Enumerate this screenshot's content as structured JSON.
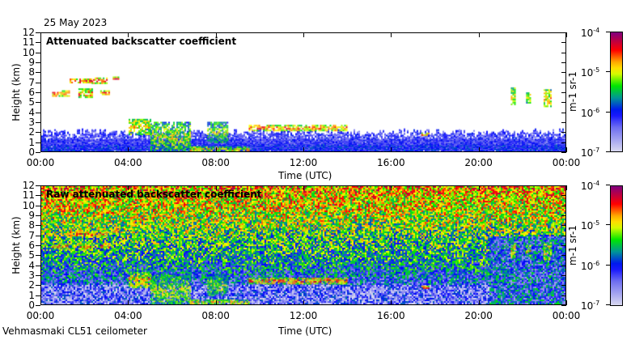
{
  "date": "25 May 2023",
  "footer": "Vehmasmaki CL51 ceilometer",
  "colors": {
    "lowest": "#d8d8f0",
    "blue": "#0000ff",
    "green": "#00e000",
    "yellow": "#ffff00",
    "red": "#ff0000",
    "top": "#800080"
  },
  "chart_data": [
    {
      "type": "heatmap",
      "title": "Attenuated backscatter coefficient",
      "xlabel": "Time (UTC)",
      "ylabel": "Height (km)",
      "xlim": [
        0,
        24
      ],
      "ylim": [
        0,
        12
      ],
      "x_ticks": [
        "00:00",
        "04:00",
        "08:00",
        "12:00",
        "16:00",
        "20:00",
        "00:00"
      ],
      "y_ticks": [
        "0",
        "1",
        "2",
        "3",
        "4",
        "5",
        "6",
        "7",
        "8",
        "9",
        "10",
        "11",
        "12"
      ],
      "colorbar": {
        "label": "m-1 sr-1",
        "ticks": [
          "10-7",
          "10-6",
          "10-5",
          "10-4"
        ],
        "scale": "log",
        "range": [
          1e-07,
          0.0001
        ]
      },
      "features": [
        {
          "t": [
            0,
            24
          ],
          "h": [
            0,
            2
          ],
          "level": 0.3
        },
        {
          "t": [
            0.5,
            1.3
          ],
          "h": [
            5.7,
            6.2
          ],
          "level": 0.8
        },
        {
          "t": [
            1.3,
            2.3
          ],
          "h": [
            7.0,
            7.4
          ],
          "level": 0.85
        },
        {
          "t": [
            1.7,
            2.3
          ],
          "h": [
            5.5,
            6.4
          ],
          "level": 0.75
        },
        {
          "t": [
            2.3,
            3.0
          ],
          "h": [
            7.0,
            7.5
          ],
          "level": 0.8
        },
        {
          "t": [
            2.7,
            3.1
          ],
          "h": [
            5.8,
            6.2
          ],
          "level": 0.8
        },
        {
          "t": [
            3.2,
            3.5
          ],
          "h": [
            7.3,
            7.6
          ],
          "level": 0.85
        },
        {
          "t": [
            4.0,
            5.0
          ],
          "h": [
            1.8,
            3.3
          ],
          "level": 0.7
        },
        {
          "t": [
            5.0,
            6.8
          ],
          "h": [
            0,
            3.0
          ],
          "level": 0.62
        },
        {
          "t": [
            6.8,
            9.5
          ],
          "h": [
            0,
            0.5
          ],
          "level": 0.7
        },
        {
          "t": [
            7.6,
            8.5
          ],
          "h": [
            1.0,
            3.0
          ],
          "level": 0.6
        },
        {
          "t": [
            9.5,
            14.0
          ],
          "h": [
            2.2,
            2.7
          ],
          "level": 0.8
        },
        {
          "t": [
            17.4,
            17.7
          ],
          "h": [
            1.7,
            1.9
          ],
          "level": 0.85
        },
        {
          "t": [
            21.5,
            21.7
          ],
          "h": [
            4.8,
            6.5
          ],
          "level": 0.7
        },
        {
          "t": [
            22.2,
            22.4
          ],
          "h": [
            5.0,
            6.0
          ],
          "level": 0.7
        },
        {
          "t": [
            23.0,
            23.3
          ],
          "h": [
            4.5,
            6.3
          ],
          "level": 0.7
        }
      ]
    },
    {
      "type": "heatmap",
      "title": "Raw attenuated backscatter coefficient",
      "xlabel": "Time (UTC)",
      "ylabel": "Height (km)",
      "xlim": [
        0,
        24
      ],
      "ylim": [
        0,
        12
      ],
      "x_ticks": [
        "00:00",
        "04:00",
        "08:00",
        "12:00",
        "16:00",
        "20:00",
        "00:00"
      ],
      "y_ticks": [
        "0",
        "1",
        "2",
        "3",
        "4",
        "5",
        "6",
        "7",
        "8",
        "9",
        "10",
        "11",
        "12"
      ],
      "colorbar": {
        "label": "m-1 sr-1",
        "ticks": [
          "10-7",
          "10-6",
          "10-5",
          "10-4"
        ],
        "scale": "log",
        "range": [
          1e-07,
          0.0001
        ]
      }
    }
  ]
}
